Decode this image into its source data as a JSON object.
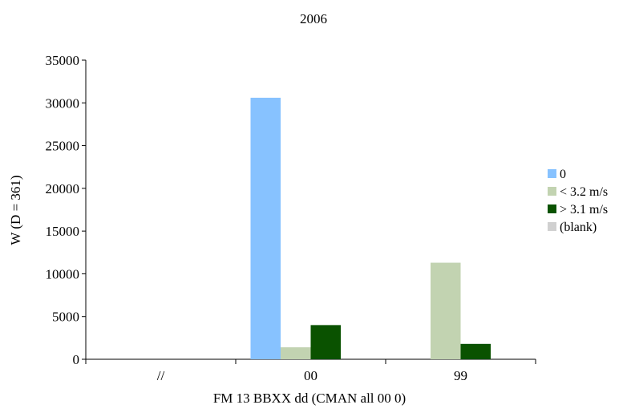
{
  "chart_data": {
    "type": "bar",
    "title": "2006",
    "xlabel": "FM 13 BBXX dd (CMAN all 00 0)",
    "ylabel": "W (D = 361)",
    "categories": [
      "//",
      "00",
      "99"
    ],
    "ylim": [
      0,
      35000
    ],
    "yticks": [
      0,
      5000,
      10000,
      15000,
      20000,
      25000,
      30000,
      35000
    ],
    "grid": false,
    "legend_position": "right",
    "series": [
      {
        "name": "0",
        "color": "#87c2ff",
        "values": [
          0,
          30600,
          0
        ]
      },
      {
        "name": "< 3.2 m/s",
        "color": "#c2d3b1",
        "values": [
          0,
          1400,
          11300
        ]
      },
      {
        "name": "> 3.1 m/s",
        "color": "#0a5200",
        "values": [
          0,
          4000,
          1800
        ]
      },
      {
        "name": "(blank)",
        "color": "#d0d0d0",
        "values": [
          0,
          0,
          0
        ]
      }
    ]
  }
}
